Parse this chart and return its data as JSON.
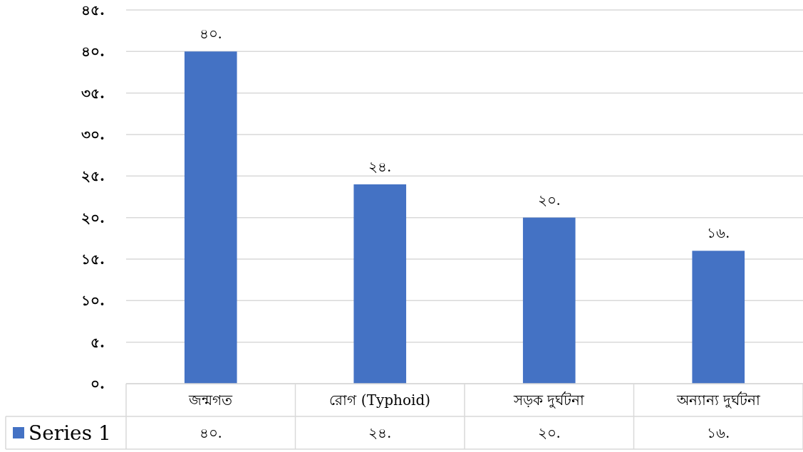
{
  "chart_data": {
    "type": "bar",
    "categories": [
      "জন্মগত",
      "রোগ  (Typhoid)",
      "সড়ক দুর্ঘটনা",
      "অন্যান্য দুর্ঘটনা"
    ],
    "series": [
      {
        "name": "Series 1",
        "color": "#4472c4",
        "values": [
          40,
          24,
          20,
          16
        ],
        "value_labels": [
          "৪০.",
          "২৪.",
          "২০.",
          "১৬."
        ]
      }
    ],
    "ylim": [
      0,
      45
    ],
    "yticks": [
      {
        "value": 0,
        "label": "০."
      },
      {
        "value": 5,
        "label": "৫."
      },
      {
        "value": 10,
        "label": "১০."
      },
      {
        "value": 15,
        "label": "১৫."
      },
      {
        "value": 20,
        "label": "২০."
      },
      {
        "value": 25,
        "label": "২৫."
      },
      {
        "value": 30,
        "label": "৩০."
      },
      {
        "value": 35,
        "label": "৩৫."
      },
      {
        "value": 40,
        "label": "৪০."
      },
      {
        "value": 45,
        "label": "৪৫."
      }
    ],
    "grid": "y",
    "legend": "bottom"
  }
}
